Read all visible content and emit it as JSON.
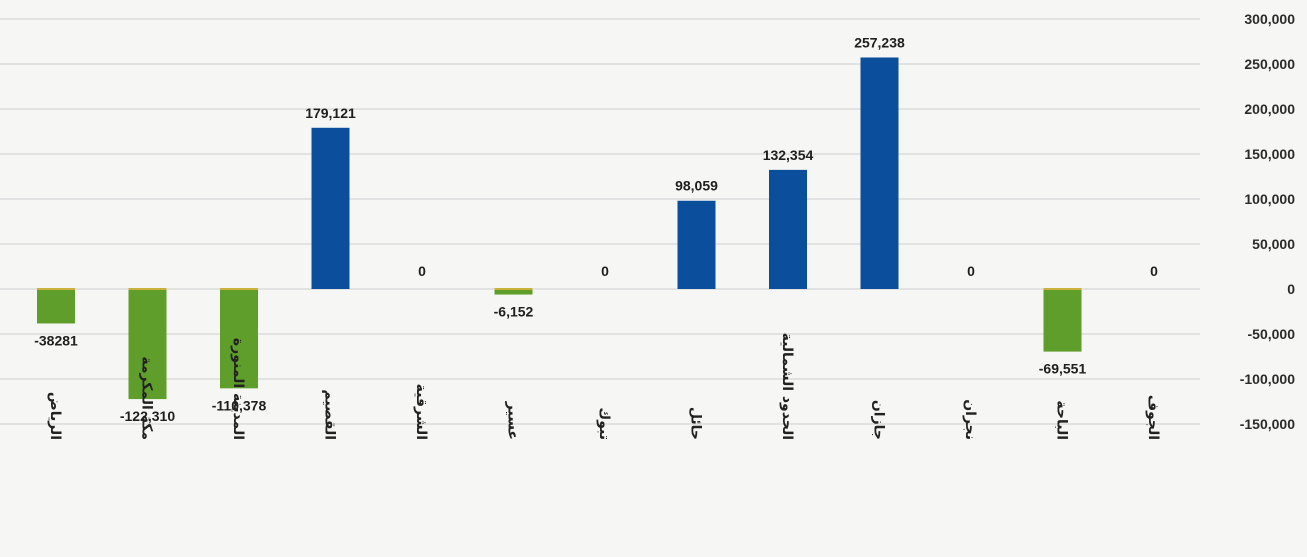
{
  "chart_data": {
    "type": "bar",
    "title": "",
    "xlabel": "",
    "ylabel": "",
    "categories": [
      "الرياض",
      "مكة المكرمة",
      "المدينة المنورة",
      "القصيم",
      "الشرقية",
      "عسير",
      "تبوك",
      "حائل",
      "الحدود الشمالية",
      "جازان",
      "نجران",
      "الباحة",
      "الجوف"
    ],
    "values": [
      -38281,
      -122310,
      -110378,
      179121,
      0,
      -6152,
      0,
      98059,
      132354,
      257238,
      0,
      -69551,
      0
    ],
    "data_labels": [
      "-38281",
      "-122,310",
      "-110,378",
      "179,121",
      "0",
      "-6,152",
      "0",
      "98,059",
      "132,354",
      "257,238",
      "0",
      "-69,551",
      "0"
    ],
    "ylim": [
      -150000,
      300000
    ],
    "y_ticks": [
      300000,
      250000,
      200000,
      150000,
      100000,
      50000,
      0,
      -50000,
      -100000,
      -150000
    ],
    "y_tick_labels": [
      "300,000",
      "250,000",
      "200,000",
      "150,000",
      "100,000",
      "50,000",
      "0",
      "-50,000",
      "-100,000",
      "-150,000"
    ],
    "y_axis_side": "right",
    "grid": true,
    "legend": "none",
    "colors": {
      "positive": "#0b4f9c",
      "negative": "#5f9e2a",
      "negative_cap": "#c9b23a"
    }
  }
}
